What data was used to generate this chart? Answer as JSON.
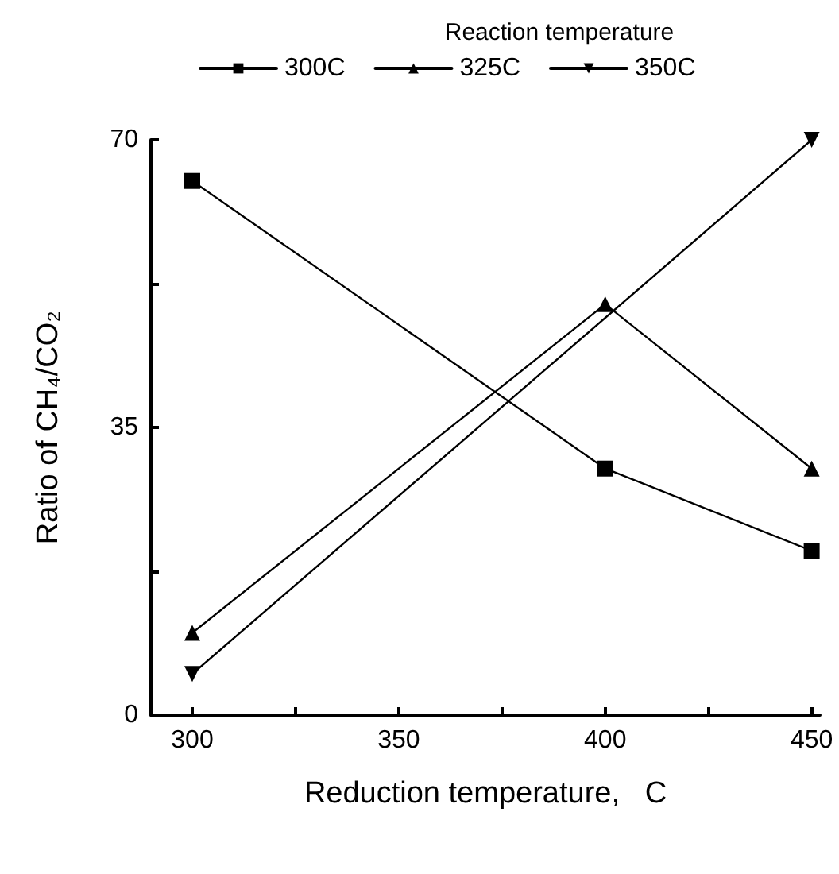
{
  "chart_data": {
    "type": "line",
    "xlabel": "Reduction temperature,   C",
    "ylabel": "Ratio of CH₄/CO₂",
    "legend_title": "Reaction temperature",
    "legend": "top",
    "x": [
      300,
      400,
      450
    ],
    "series": [
      {
        "name": "300C",
        "color": "#000000",
        "marker": "square",
        "values": [
          65,
          30,
          20
        ]
      },
      {
        "name": "325C",
        "color": "#000000",
        "marker": "triangle",
        "values": [
          10,
          50,
          30
        ]
      },
      {
        "name": "350C",
        "color": "#000000",
        "marker": "triangle-down",
        "x": [
          300,
          450
        ],
        "values": [
          5,
          70
        ]
      }
    ],
    "xlim": [
      290,
      452
    ],
    "xticks": [
      300,
      {
        "value": 325,
        "label": null
      },
      350,
      {
        "value": 375,
        "label": null
      },
      400,
      {
        "value": 425,
        "label": null
      },
      450
    ],
    "ylim": [
      0,
      70
    ],
    "yticks": [
      0,
      {
        "value": 17.5,
        "label": null
      },
      35,
      {
        "value": 52.5,
        "label": null
      },
      70
    ],
    "grid": false
  }
}
